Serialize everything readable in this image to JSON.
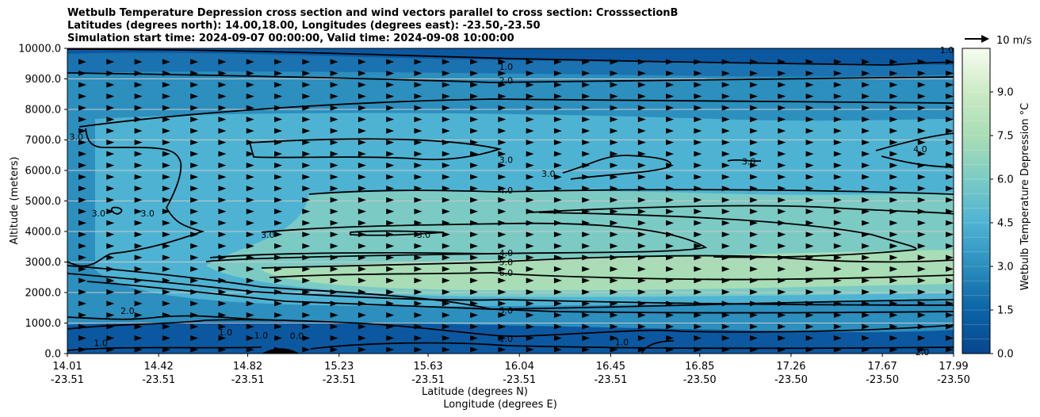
{
  "chart_data": {
    "type": "heatmap",
    "title_lines": [
      "Wetbulb Temperature Depression cross section and wind vectors parallel to cross section: CrosssectionB",
      "Latitudes (degrees north): 14.00,18.00, Longitudes (degrees east): -23.50,-23.50",
      "Simulation start time: 2024-09-07 00:00:00, Valid time: 2024-09-08 10:00:00"
    ],
    "ylabel": "Altitude (meters)",
    "xlabel_lat": "Latitude (degrees N)",
    "xlabel_lon": "Longitude (degrees E)",
    "ylim": [
      0,
      10000
    ],
    "y_ticks": [
      "0.0",
      "1000.0",
      "2000.0",
      "3000.0",
      "4000.0",
      "5000.0",
      "6000.0",
      "7000.0",
      "8000.0",
      "9000.0",
      "10000.0"
    ],
    "y_tick_values": [
      0,
      1000,
      2000,
      3000,
      4000,
      5000,
      6000,
      7000,
      8000,
      9000,
      10000
    ],
    "x_ticks": [
      {
        "lat": "14.01",
        "lon": "-23.51"
      },
      {
        "lat": "14.42",
        "lon": "-23.51"
      },
      {
        "lat": "14.82",
        "lon": "-23.51"
      },
      {
        "lat": "15.23",
        "lon": "-23.51"
      },
      {
        "lat": "15.63",
        "lon": "-23.51"
      },
      {
        "lat": "16.04",
        "lon": "-23.51"
      },
      {
        "lat": "16.45",
        "lon": "-23.51"
      },
      {
        "lat": "16.85",
        "lon": "-23.50"
      },
      {
        "lat": "17.26",
        "lon": "-23.50"
      },
      {
        "lat": "17.67",
        "lon": "-23.50"
      },
      {
        "lat": "17.99",
        "lon": "-23.50"
      }
    ],
    "x_tick_values": [
      14.01,
      14.42,
      14.82,
      15.23,
      15.63,
      16.04,
      16.45,
      16.85,
      17.26,
      17.67,
      17.99
    ],
    "xlim": [
      14.01,
      17.99
    ],
    "colorbar": {
      "label": "Wetbulb Temperature Depression °C",
      "range": [
        0,
        10.5
      ],
      "ticks": [
        "0.0",
        "1.5",
        "3.0",
        "4.5",
        "6.0",
        "7.5",
        "9.0"
      ],
      "tick_values": [
        0,
        1.5,
        3.0,
        4.5,
        6.0,
        7.5,
        9.0
      ]
    },
    "wind_key": "10 m/s",
    "contour_labels": [
      {
        "text": "1.0",
        "lat": 15.98,
        "alt": 9400
      },
      {
        "text": "2.0",
        "lat": 15.98,
        "alt": 8950
      },
      {
        "text": "1.0",
        "lat": 17.96,
        "alt": 9950
      },
      {
        "text": "3.0",
        "lat": 14.05,
        "alt": 7100
      },
      {
        "text": "3.0",
        "lat": 15.98,
        "alt": 6350
      },
      {
        "text": "3.0",
        "lat": 16.17,
        "alt": 5900
      },
      {
        "text": "3.0",
        "lat": 17.07,
        "alt": 6300
      },
      {
        "text": "4.0",
        "lat": 17.84,
        "alt": 6700
      },
      {
        "text": "4.0",
        "lat": 15.98,
        "alt": 5350
      },
      {
        "text": "3.0",
        "lat": 14.15,
        "alt": 4600
      },
      {
        "text": "3.0",
        "lat": 14.37,
        "alt": 4600
      },
      {
        "text": "3.0",
        "lat": 14.91,
        "alt": 3900
      },
      {
        "text": "3.0",
        "lat": 15.61,
        "alt": 3900
      },
      {
        "text": "4.0",
        "lat": 15.98,
        "alt": 3300
      },
      {
        "text": "5.0",
        "lat": 15.98,
        "alt": 3000
      },
      {
        "text": "6.0",
        "lat": 15.98,
        "alt": 2650
      },
      {
        "text": "3.0",
        "lat": 15.98,
        "alt": 1420
      },
      {
        "text": "2.0",
        "lat": 14.28,
        "alt": 1400
      },
      {
        "text": "1.0",
        "lat": 14.72,
        "alt": 700
      },
      {
        "text": "1.0",
        "lat": 14.88,
        "alt": 600
      },
      {
        "text": "0.0",
        "lat": 15.04,
        "alt": 580
      },
      {
        "text": "1.0",
        "lat": 15.98,
        "alt": 500
      },
      {
        "text": "1.0",
        "lat": 16.5,
        "alt": 380
      },
      {
        "text": "2.0",
        "lat": 17.85,
        "alt": 50
      },
      {
        "text": "1.0",
        "lat": 14.16,
        "alt": 350
      }
    ]
  }
}
